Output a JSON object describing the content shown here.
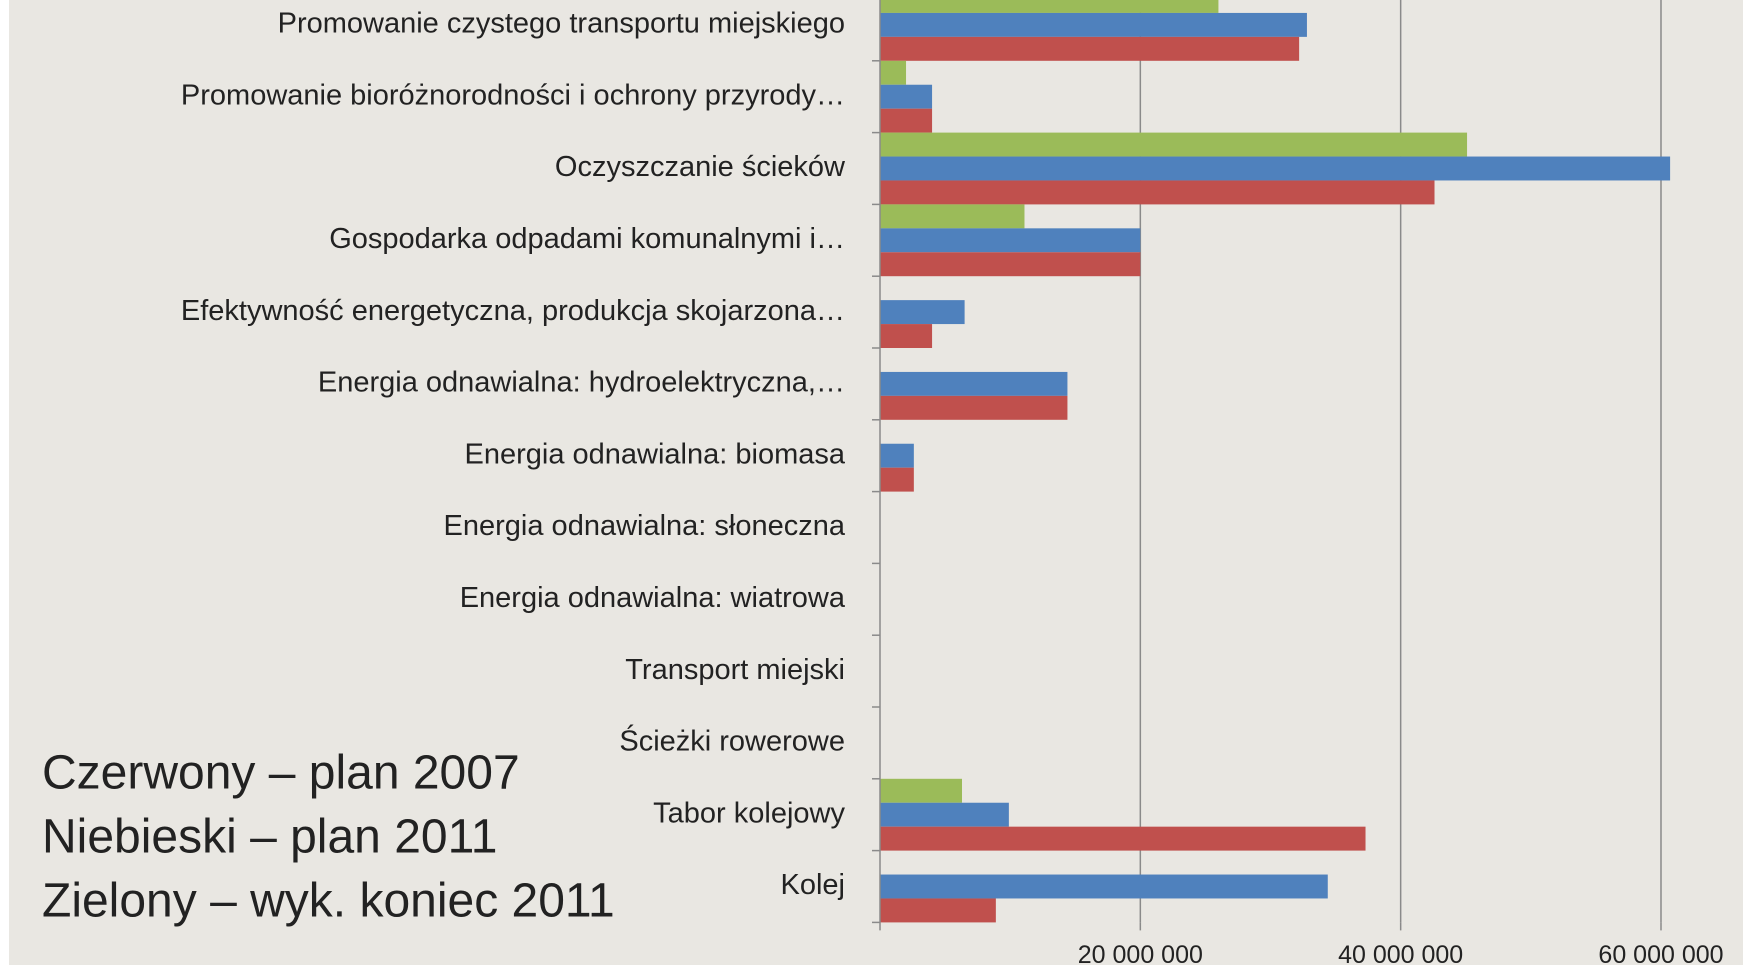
{
  "chart_data": {
    "type": "bar",
    "orientation": "horizontal",
    "categories": [
      "Promowanie czystego transportu miejskiego",
      "Promowanie bioróżnorodności i ochrony przyrody…",
      "Oczyszczanie ścieków",
      "Gospodarka odpadami komunalnymi i…",
      "Efektywność energetyczna, produkcja skojarzona…",
      "Energia odnawialna: hydroelektryczna,…",
      "Energia odnawialna: biomasa",
      "Energia odnawialna: słoneczna",
      "Energia odnawialna: wiatrowa",
      "Transport miejski",
      "Ścieżki rowerowe",
      "Tabor kolejowy",
      "Kolej"
    ],
    "series": [
      {
        "name": "Zielony – wyk. koniec 2011",
        "color": "#9bbb59",
        "values": [
          26000000,
          2000000,
          45100000,
          11100000,
          0,
          0,
          0,
          0,
          0,
          0,
          0,
          6300000,
          0
        ]
      },
      {
        "name": "Niebieski – plan 2011",
        "color": "#4f81bd",
        "values": [
          32800000,
          4000000,
          60700000,
          20000000,
          6500000,
          14400000,
          2600000,
          0,
          0,
          0,
          0,
          9900000,
          34400000
        ]
      },
      {
        "name": "Czerwony – plan 2007",
        "color": "#c0504d",
        "values": [
          32200000,
          4000000,
          42600000,
          20000000,
          4000000,
          14400000,
          2600000,
          0,
          0,
          0,
          0,
          37300000,
          8900000
        ]
      }
    ],
    "legend_order": [
      2,
      1,
      0
    ],
    "xlim": [
      0,
      66300000
    ],
    "xticks": [
      {
        "value": 20000000,
        "label": "20 000 000"
      },
      {
        "value": 40000000,
        "label": "40 000 000"
      },
      {
        "value": 60000000,
        "label": "60 000 000"
      }
    ],
    "grid": true
  }
}
